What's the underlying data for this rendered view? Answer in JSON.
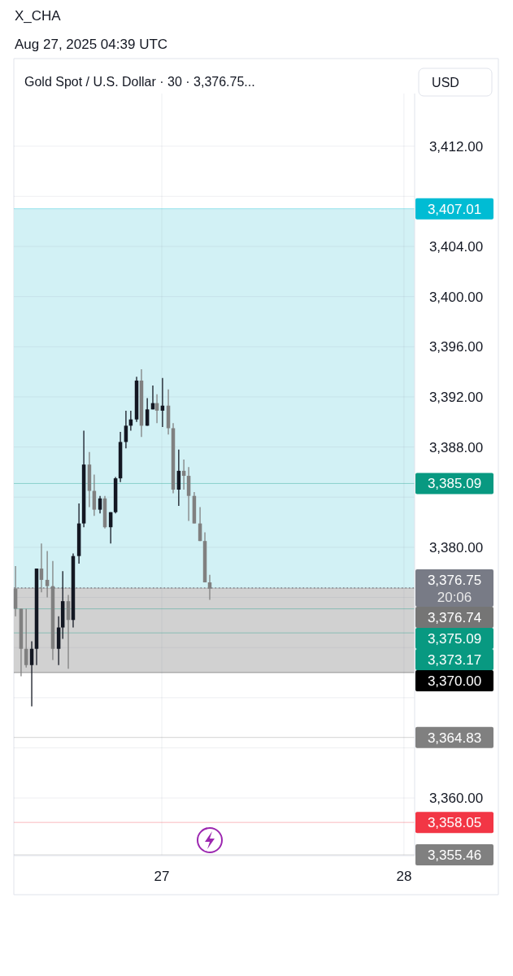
{
  "chart_data": {
    "type": "candlestick",
    "title": "Gold Spot / U.S. Dollar · 30 · 3,376.75...",
    "annotations": [
      "X_CHA",
      "Aug 27, 2025 04:39 UTC",
      "USD"
    ],
    "x": [
      26.396,
      26.419,
      26.44,
      26.463,
      26.483,
      26.503,
      26.527,
      26.55,
      26.574,
      26.591,
      26.614,
      26.634,
      26.658,
      26.678,
      26.701,
      26.721,
      26.745,
      26.765,
      26.789,
      26.809,
      26.829,
      26.852,
      26.872,
      26.896,
      26.916,
      26.94,
      26.963,
      26.98,
      27.003,
      27.027,
      27.047,
      27.07,
      27.091,
      27.111,
      27.134,
      27.158,
      27.178,
      27.198
    ],
    "ohlc": [
      [
        3376.7,
        3378.5,
        3374.5,
        3375.1
      ],
      [
        3375.1,
        3375.1,
        3369.7,
        3371.9
      ],
      [
        3371.9,
        3375.1,
        3370.4,
        3370.6
      ],
      [
        3370.6,
        3372.5,
        3367.3,
        3371.9
      ],
      [
        3371.9,
        3378.3,
        3370.6,
        3378.3
      ],
      [
        3378.3,
        3380.3,
        3376.4,
        3377.4
      ],
      [
        3377.4,
        3379.7,
        3376.0,
        3376.9
      ],
      [
        3376.9,
        3378.9,
        3371.0,
        3371.9
      ],
      [
        3371.9,
        3374.5,
        3370.6,
        3373.6
      ],
      [
        3373.6,
        3378.1,
        3372.7,
        3375.7
      ],
      [
        3375.7,
        3376.2,
        3370.3,
        3374.2
      ],
      [
        3374.2,
        3379.5,
        3373.6,
        3379.3
      ],
      [
        3379.3,
        3383.5,
        3378.7,
        3381.9
      ],
      [
        3381.9,
        3389.3,
        3381.6,
        3386.6
      ],
      [
        3386.6,
        3387.6,
        3383.2,
        3384.5
      ],
      [
        3384.5,
        3385.8,
        3382.5,
        3383.0
      ],
      [
        3383.0,
        3384.1,
        3382.7,
        3383.9
      ],
      [
        3383.9,
        3384.1,
        3381.5,
        3381.6
      ],
      [
        3381.6,
        3382.8,
        3380.3,
        3382.8
      ],
      [
        3382.8,
        3385.6,
        3382.7,
        3385.5
      ],
      [
        3385.5,
        3389.2,
        3385.2,
        3388.4
      ],
      [
        3388.4,
        3390.9,
        3387.9,
        3389.7
      ],
      [
        3389.7,
        3390.9,
        3389.3,
        3390.2
      ],
      [
        3390.2,
        3393.6,
        3390.0,
        3393.3
      ],
      [
        3393.3,
        3394.2,
        3388.8,
        3389.7
      ],
      [
        3389.7,
        3391.9,
        3389.7,
        3391.0
      ],
      [
        3391.0,
        3392.9,
        3391.0,
        3391.5
      ],
      [
        3391.5,
        3392.2,
        3389.9,
        3390.9
      ],
      [
        3390.9,
        3393.5,
        3389.6,
        3391.3
      ],
      [
        3391.3,
        3392.6,
        3389.0,
        3389.5
      ],
      [
        3389.5,
        3389.9,
        3384.3,
        3384.6
      ],
      [
        3384.6,
        3387.8,
        3383.3,
        3386.1
      ],
      [
        3386.1,
        3387.0,
        3384.6,
        3385.7
      ],
      [
        3385.7,
        3386.4,
        3382.1,
        3384.1
      ],
      [
        3384.1,
        3384.4,
        3381.9,
        3381.9
      ],
      [
        3381.9,
        3383.2,
        3380.5,
        3380.5
      ],
      [
        3380.5,
        3381.2,
        3377.2,
        3377.2
      ],
      [
        3377.2,
        3377.8,
        3375.8,
        3376.7
      ]
    ],
    "colors": [
      "#808080",
      "#808080",
      "#808080",
      "#131722",
      "#131722",
      "#808080",
      "#808080",
      "#808080",
      "#131722",
      "#131722",
      "#808080",
      "#131722",
      "#131722",
      "#131722",
      "#808080",
      "#808080",
      "#131722",
      "#808080",
      "#131722",
      "#131722",
      "#131722",
      "#131722",
      "#131722",
      "#131722",
      "#808080",
      "#131722",
      "#131722",
      "#808080",
      "#131722",
      "#808080",
      "#808080",
      "#131722",
      "#808080",
      "#808080",
      "#808080",
      "#808080",
      "#808080",
      "#808080"
    ],
    "xlim": [
      26.389,
      28.044
    ],
    "xticks": [
      27,
      28
    ],
    "ylim": [
      3355.4,
      3416.2
    ],
    "yticks": [
      {
        "value": 3360,
        "label": "3,360.00"
      },
      {
        "value": 3364,
        "label": null
      },
      {
        "value": 3368,
        "label": null
      },
      {
        "value": 3372,
        "label": null
      },
      {
        "value": 3376,
        "label": null
      },
      {
        "value": 3380,
        "label": "3,380.00"
      },
      {
        "value": 3384,
        "label": null
      },
      {
        "value": 3388,
        "label": "3,388.00"
      },
      {
        "value": 3392,
        "label": "3,392.00"
      },
      {
        "value": 3396,
        "label": "3,396.00"
      },
      {
        "value": 3400,
        "label": "3,400.00"
      },
      {
        "value": 3404,
        "label": "3,404.00"
      },
      {
        "value": 3408,
        "label": null
      },
      {
        "value": 3412,
        "label": "3,412.00"
      }
    ],
    "grid": true,
    "bands": [
      {
        "axis": "y",
        "from": 3376.75,
        "to": 3407.01,
        "color": "#cdf0f4"
      },
      {
        "axis": "y",
        "from": 3370.0,
        "to": 3376.75,
        "color": "#cccccc"
      }
    ],
    "ref_lines": [
      {
        "axis": "y",
        "value": 3407.01,
        "label": "3,407.01",
        "color": "#00bcd4"
      },
      {
        "axis": "y",
        "value": 3385.09,
        "label": "3,385.09",
        "color": "#089981"
      },
      {
        "axis": "y",
        "value": 3376.75,
        "label": "3,376.75\n20:06",
        "color": "#787b86",
        "line_style": "dotted"
      },
      {
        "axis": "y",
        "value": 3376.74,
        "label": "3,376.74",
        "color": "#757575"
      },
      {
        "axis": "y",
        "value": 3375.09,
        "label": "3,375.09",
        "color": "#089981"
      },
      {
        "axis": "y",
        "value": 3373.17,
        "label": "3,373.17",
        "color": "#089981"
      },
      {
        "axis": "y",
        "value": 3370.0,
        "label": "3,370.00",
        "color": "#000000"
      },
      {
        "axis": "y",
        "value": 3364.83,
        "label": "3,364.83",
        "color": "#808080"
      },
      {
        "axis": "y",
        "value": 3358.05,
        "label": "3,358.05",
        "color": "#f23645"
      },
      {
        "axis": "y",
        "value": 3355.46,
        "label": "3,355.46",
        "color": "#808080"
      }
    ]
  }
}
